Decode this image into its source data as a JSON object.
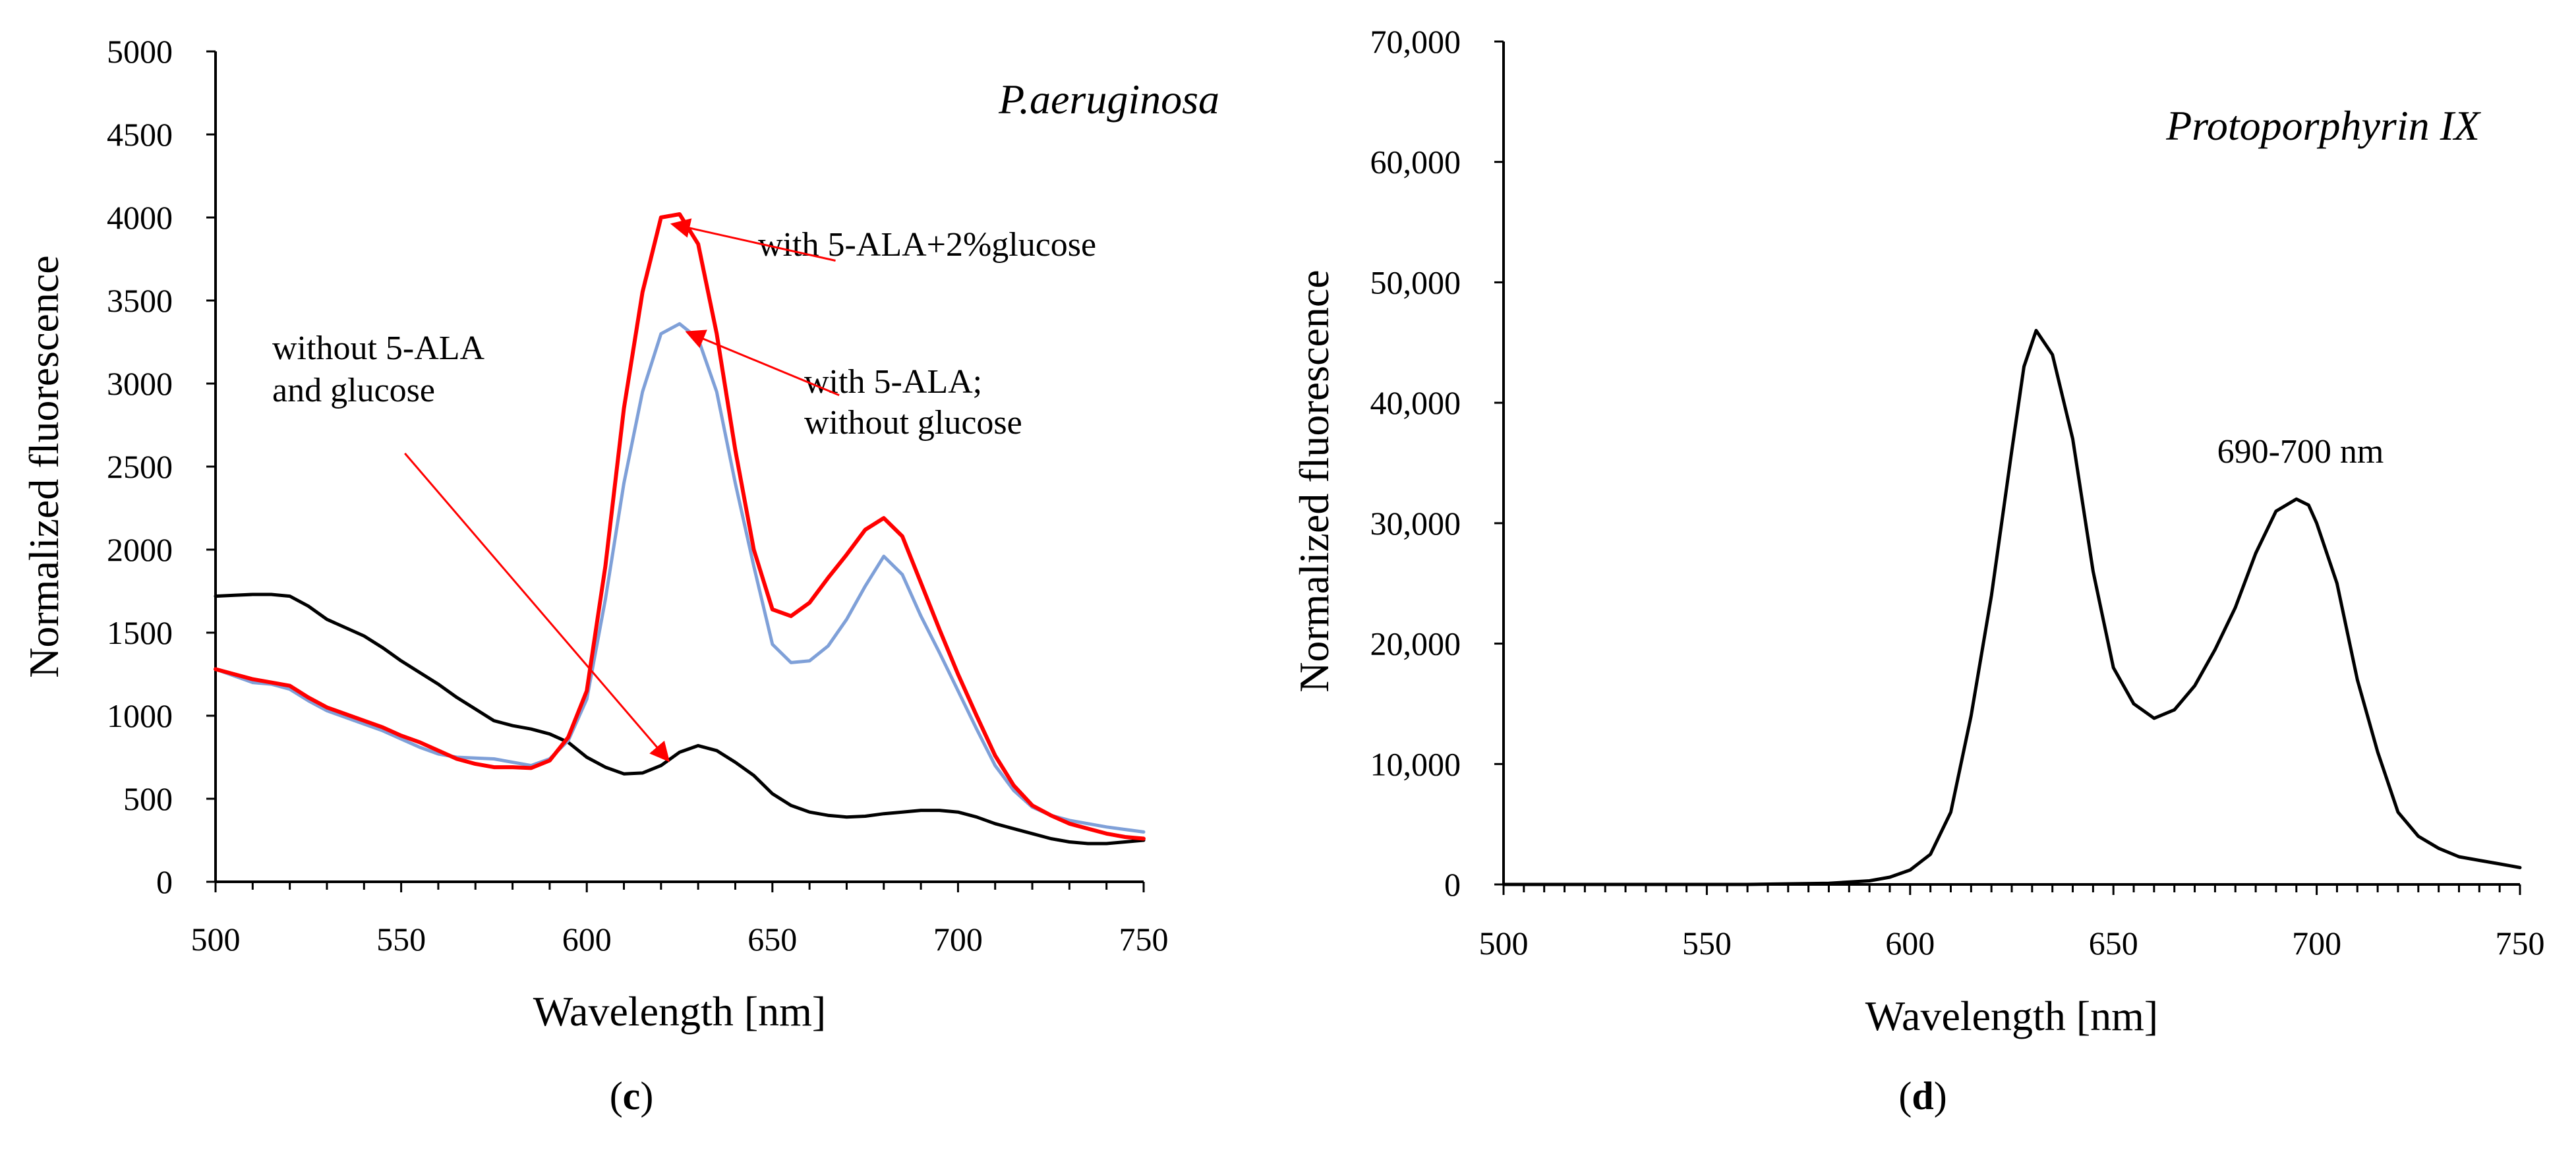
{
  "chart_data": [
    {
      "type": "line",
      "panel_label": "c",
      "title": "P.aeruginosa",
      "xlabel": "Wavelength [nm]",
      "ylabel": "Normalized fluorescence",
      "xlim": [
        500,
        750
      ],
      "ylim": [
        0,
        5000
      ],
      "x_ticks": [
        500,
        550,
        600,
        650,
        700,
        750
      ],
      "y_ticks": [
        0,
        500,
        1000,
        1500,
        2000,
        2500,
        3000,
        3500,
        4000,
        4500,
        5000
      ],
      "x_tick_labels": [
        "500",
        "550",
        "600",
        "650",
        "700",
        "750"
      ],
      "y_tick_labels": [
        "0",
        "500",
        "1000",
        "1500",
        "2000",
        "2500",
        "3000",
        "3500",
        "4000",
        "4500",
        "5000"
      ],
      "series": [
        {
          "name": "without 5-ALA and glucose",
          "color": "#000000",
          "points": [
            [
              500,
              1720
            ],
            [
              505,
              1725
            ],
            [
              510,
              1730
            ],
            [
              515,
              1730
            ],
            [
              520,
              1720
            ],
            [
              525,
              1660
            ],
            [
              530,
              1580
            ],
            [
              535,
              1530
            ],
            [
              540,
              1480
            ],
            [
              545,
              1410
            ],
            [
              550,
              1330
            ],
            [
              555,
              1260
            ],
            [
              560,
              1190
            ],
            [
              565,
              1110
            ],
            [
              570,
              1040
            ],
            [
              575,
              970
            ],
            [
              580,
              940
            ],
            [
              585,
              920
            ],
            [
              590,
              890
            ],
            [
              595,
              840
            ],
            [
              600,
              750
            ],
            [
              605,
              690
            ],
            [
              610,
              650
            ],
            [
              615,
              655
            ],
            [
              620,
              700
            ],
            [
              625,
              780
            ],
            [
              630,
              820
            ],
            [
              635,
              790
            ],
            [
              640,
              720
            ],
            [
              645,
              640
            ],
            [
              650,
              530
            ],
            [
              655,
              460
            ],
            [
              660,
              420
            ],
            [
              665,
              400
            ],
            [
              670,
              390
            ],
            [
              675,
              395
            ],
            [
              680,
              410
            ],
            [
              685,
              420
            ],
            [
              690,
              430
            ],
            [
              695,
              430
            ],
            [
              700,
              420
            ],
            [
              705,
              390
            ],
            [
              710,
              350
            ],
            [
              715,
              320
            ],
            [
              720,
              290
            ],
            [
              725,
              260
            ],
            [
              730,
              240
            ],
            [
              735,
              230
            ],
            [
              740,
              230
            ],
            [
              745,
              240
            ],
            [
              750,
              250
            ]
          ]
        },
        {
          "name": "with 5-ALA; without glucose",
          "color": "#7fa0d8",
          "points": [
            [
              500,
              1280
            ],
            [
              505,
              1240
            ],
            [
              510,
              1200
            ],
            [
              515,
              1190
            ],
            [
              520,
              1160
            ],
            [
              525,
              1090
            ],
            [
              530,
              1030
            ],
            [
              535,
              990
            ],
            [
              540,
              950
            ],
            [
              545,
              910
            ],
            [
              550,
              860
            ],
            [
              555,
              810
            ],
            [
              560,
              770
            ],
            [
              565,
              750
            ],
            [
              570,
              745
            ],
            [
              575,
              740
            ],
            [
              580,
              720
            ],
            [
              585,
              700
            ],
            [
              590,
              740
            ],
            [
              595,
              850
            ],
            [
              600,
              1100
            ],
            [
              605,
              1700
            ],
            [
              610,
              2400
            ],
            [
              615,
              2950
            ],
            [
              620,
              3300
            ],
            [
              625,
              3360
            ],
            [
              630,
              3270
            ],
            [
              635,
              2950
            ],
            [
              640,
              2400
            ],
            [
              645,
              1900
            ],
            [
              650,
              1430
            ],
            [
              655,
              1320
            ],
            [
              660,
              1330
            ],
            [
              665,
              1420
            ],
            [
              670,
              1580
            ],
            [
              675,
              1780
            ],
            [
              680,
              1960
            ],
            [
              685,
              1850
            ],
            [
              690,
              1600
            ],
            [
              695,
              1380
            ],
            [
              700,
              1150
            ],
            [
              705,
              920
            ],
            [
              710,
              700
            ],
            [
              715,
              550
            ],
            [
              720,
              450
            ],
            [
              725,
              400
            ],
            [
              730,
              370
            ],
            [
              735,
              350
            ],
            [
              740,
              330
            ],
            [
              745,
              315
            ],
            [
              750,
              300
            ]
          ]
        },
        {
          "name": "with 5-ALA+2%glucose",
          "color": "#ff0000",
          "points": [
            [
              500,
              1280
            ],
            [
              505,
              1250
            ],
            [
              510,
              1220
            ],
            [
              515,
              1200
            ],
            [
              520,
              1180
            ],
            [
              525,
              1110
            ],
            [
              530,
              1050
            ],
            [
              535,
              1010
            ],
            [
              540,
              970
            ],
            [
              545,
              930
            ],
            [
              550,
              880
            ],
            [
              555,
              840
            ],
            [
              560,
              790
            ],
            [
              565,
              740
            ],
            [
              570,
              710
            ],
            [
              575,
              690
            ],
            [
              580,
              690
            ],
            [
              585,
              685
            ],
            [
              590,
              730
            ],
            [
              595,
              870
            ],
            [
              600,
              1150
            ],
            [
              605,
              1900
            ],
            [
              610,
              2850
            ],
            [
              615,
              3550
            ],
            [
              620,
              4000
            ],
            [
              625,
              4020
            ],
            [
              630,
              3840
            ],
            [
              635,
              3300
            ],
            [
              640,
              2600
            ],
            [
              645,
              2000
            ],
            [
              650,
              1640
            ],
            [
              655,
              1600
            ],
            [
              660,
              1680
            ],
            [
              665,
              1830
            ],
            [
              670,
              1970
            ],
            [
              675,
              2120
            ],
            [
              680,
              2190
            ],
            [
              685,
              2080
            ],
            [
              690,
              1800
            ],
            [
              695,
              1520
            ],
            [
              700,
              1250
            ],
            [
              705,
              1000
            ],
            [
              710,
              760
            ],
            [
              715,
              580
            ],
            [
              720,
              460
            ],
            [
              725,
              400
            ],
            [
              730,
              350
            ],
            [
              735,
              320
            ],
            [
              740,
              290
            ],
            [
              745,
              270
            ],
            [
              750,
              260
            ]
          ]
        }
      ],
      "annotations": [
        {
          "lines": [
            "with 5-ALA+2%glucose"
          ],
          "arrow_from": [
            667,
            3740
          ],
          "arrow_to": [
            623,
            3960
          ]
        },
        {
          "lines": [
            "with 5-ALA;",
            "without glucose"
          ],
          "arrow_from": [
            668,
            2930
          ],
          "arrow_to": [
            627,
            3310
          ]
        },
        {
          "lines": [
            "without 5-ALA",
            "and glucose"
          ],
          "arrow_from": [
            551,
            2580
          ],
          "arrow_to": [
            622,
            730
          ]
        }
      ]
    },
    {
      "type": "line",
      "panel_label": "d",
      "title": "Protoporphyrin IX",
      "xlabel": "Wavelength [nm]",
      "ylabel": "Normalized fluorescence",
      "xlim": [
        500,
        750
      ],
      "ylim": [
        0,
        70000
      ],
      "x_ticks": [
        500,
        550,
        600,
        650,
        700,
        750
      ],
      "y_ticks": [
        0,
        10000,
        20000,
        30000,
        40000,
        50000,
        60000,
        70000
      ],
      "x_tick_labels": [
        "500",
        "550",
        "600",
        "650",
        "700",
        "750"
      ],
      "y_tick_labels": [
        "0",
        "10,000",
        "20,000",
        "30,000",
        "40,000",
        "50,000",
        "60,000",
        "70,000"
      ],
      "series": [
        {
          "name": "Protoporphyrin IX",
          "color": "#000000",
          "points": [
            [
              500,
              0
            ],
            [
              520,
              0
            ],
            [
              540,
              0
            ],
            [
              560,
              0
            ],
            [
              580,
              100
            ],
            [
              590,
              300
            ],
            [
              595,
              600
            ],
            [
              600,
              1200
            ],
            [
              605,
              2500
            ],
            [
              610,
              6000
            ],
            [
              615,
              14000
            ],
            [
              620,
              24000
            ],
            [
              625,
              36000
            ],
            [
              628,
              43000
            ],
            [
              631,
              46000
            ],
            [
              635,
              44000
            ],
            [
              640,
              37000
            ],
            [
              645,
              26000
            ],
            [
              650,
              18000
            ],
            [
              655,
              15000
            ],
            [
              660,
              13800
            ],
            [
              665,
              14500
            ],
            [
              670,
              16500
            ],
            [
              675,
              19500
            ],
            [
              680,
              23000
            ],
            [
              685,
              27500
            ],
            [
              690,
              31000
            ],
            [
              695,
              32000
            ],
            [
              698,
              31500
            ],
            [
              700,
              30000
            ],
            [
              705,
              25000
            ],
            [
              710,
              17000
            ],
            [
              715,
              11000
            ],
            [
              720,
              6000
            ],
            [
              725,
              4000
            ],
            [
              730,
              3000
            ],
            [
              735,
              2300
            ],
            [
              740,
              2000
            ],
            [
              745,
              1700
            ],
            [
              750,
              1400
            ]
          ]
        }
      ],
      "annotations": [
        {
          "lines": [
            "690-700 nm"
          ],
          "arrow_from": null,
          "arrow_to": null
        }
      ]
    }
  ]
}
